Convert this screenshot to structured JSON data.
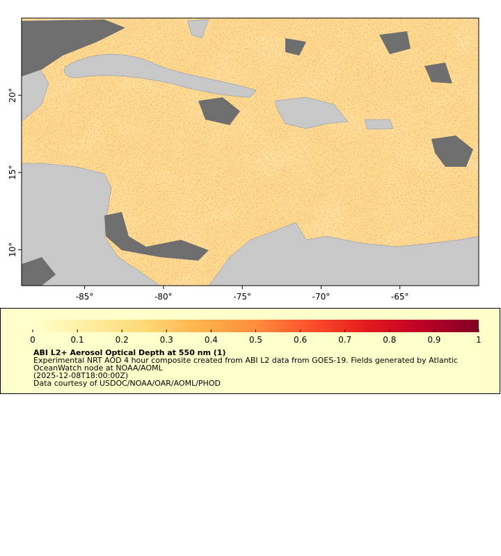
{
  "map": {
    "xlim": [
      -89,
      -60
    ],
    "ylim": [
      7.67,
      25
    ],
    "xticks": [
      {
        "value": -85,
        "label": "-85°"
      },
      {
        "value": -80,
        "label": "-80°"
      },
      {
        "value": -75,
        "label": "-75°"
      },
      {
        "value": -70,
        "label": "-70°"
      },
      {
        "value": -65,
        "label": "-65°"
      }
    ],
    "yticks": [
      {
        "value": 10,
        "label": "10°"
      },
      {
        "value": 15,
        "label": "15°"
      },
      {
        "value": 20,
        "label": "20°"
      }
    ]
  },
  "legend": {
    "colorbar": {
      "range": [
        0,
        1
      ],
      "ticks": [
        0,
        0.1,
        0.2,
        0.3,
        0.4,
        0.5,
        0.6,
        0.7,
        0.8,
        0.9,
        1
      ],
      "colors": [
        "#ffffcc",
        "#ffeda0",
        "#fed976",
        "#feb24c",
        "#fd8d3c",
        "#fc4e2a",
        "#e31a1c",
        "#bd0026",
        "#800026"
      ]
    },
    "title": "ABI L2+ Aerosol Optical Depth at 550 nm (1)",
    "lines": [
      "Experimental NRT AOD 4 hour composite created from ABI L2 data from GOES-19. Fields generated by Atlantic",
      "OceanWatch node at NOAA/AOML",
      "(2025-12-08T18:00:00Z)",
      "Data courtesy of USDOC/NOAA/OAR/AOML/PHOD"
    ]
  }
}
